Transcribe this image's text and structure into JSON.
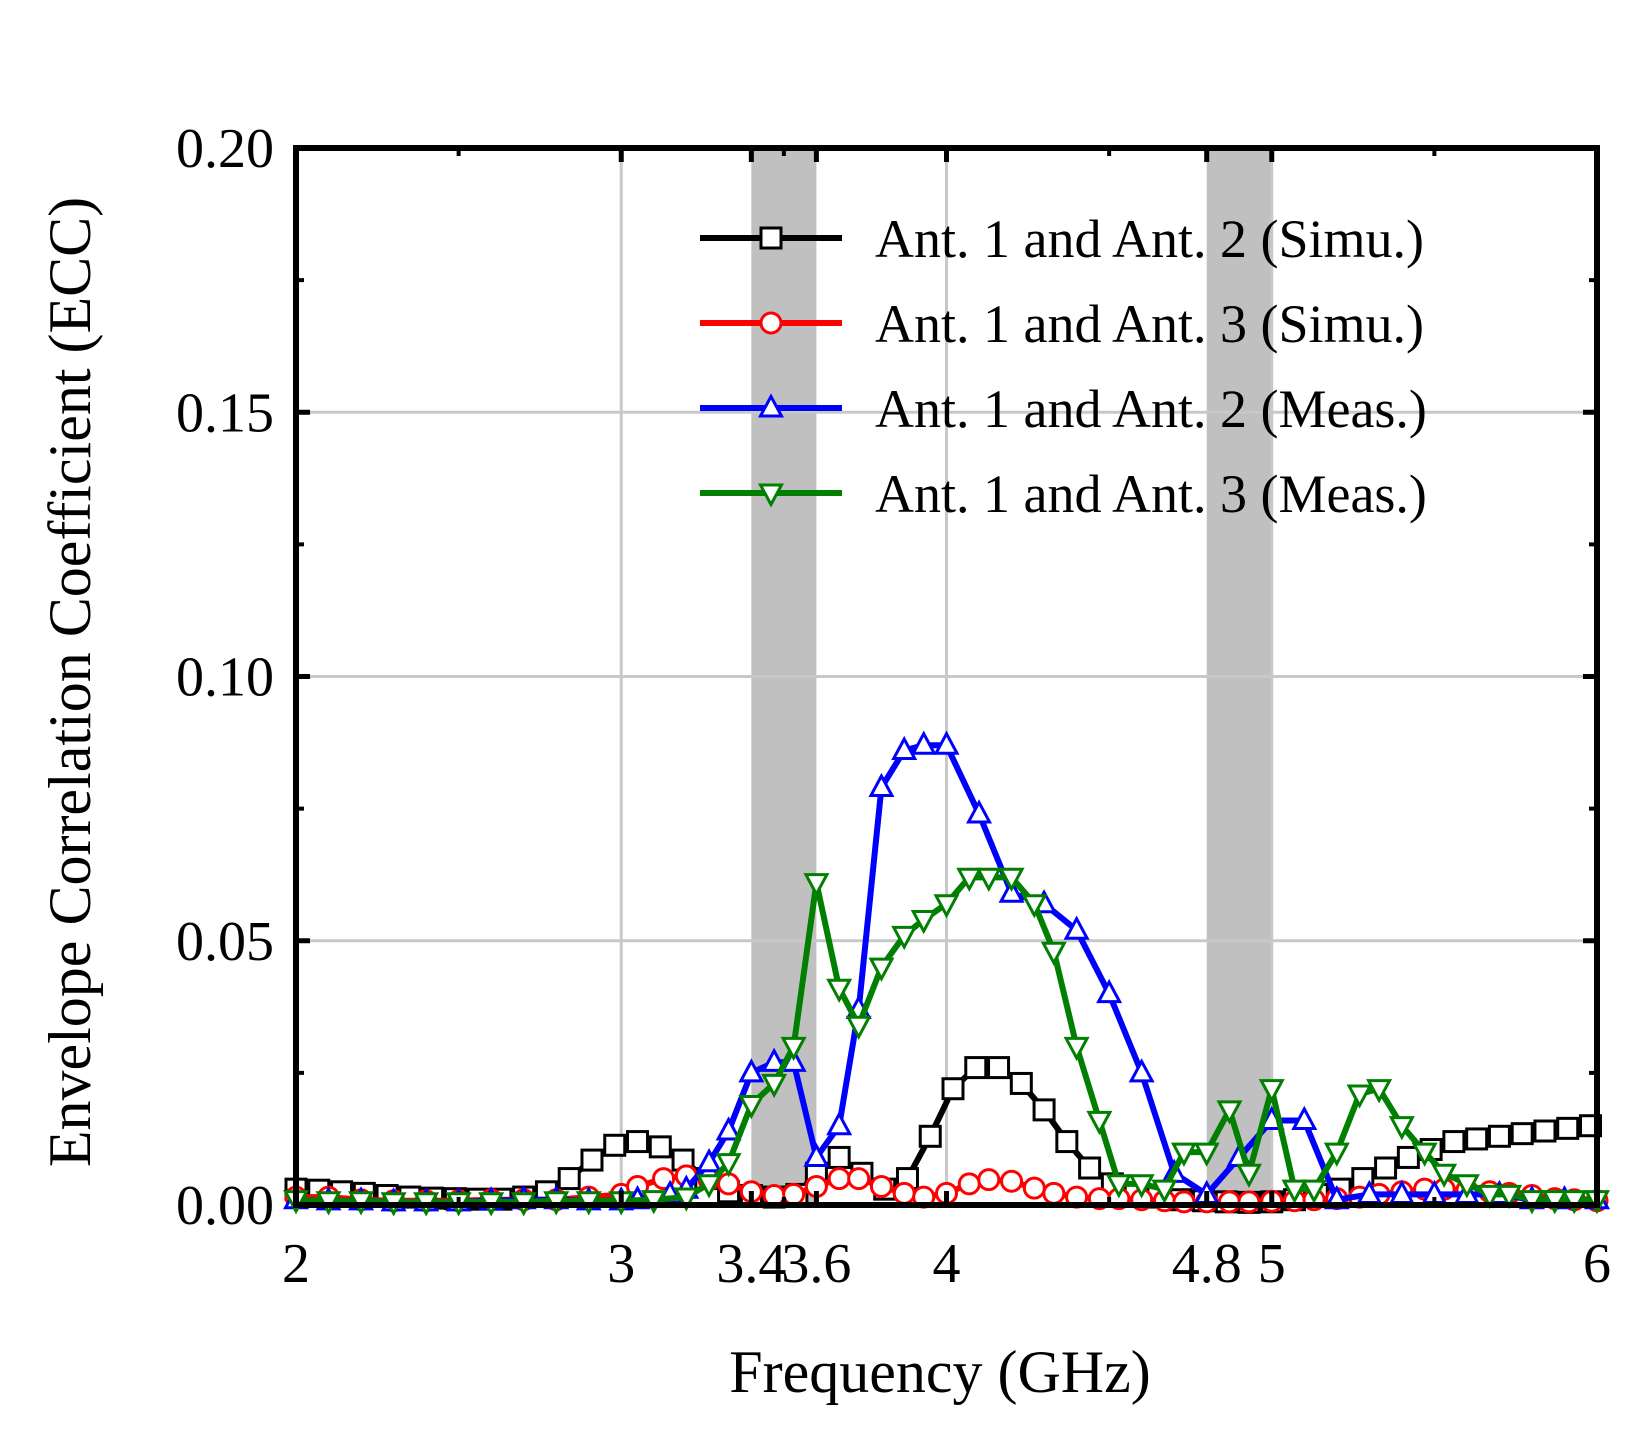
{
  "chart_data": {
    "type": "line",
    "title": "",
    "xlabel": "Frequency (GHz)",
    "ylabel": "Envelope Correlation Coefficient (ECC)",
    "xlim": [
      2,
      6
    ],
    "ylim": [
      0,
      0.2
    ],
    "xticks": [
      2,
      3,
      3.4,
      3.6,
      4,
      4.8,
      5,
      6
    ],
    "xtick_labels": [
      "2",
      "3",
      "3.4",
      "3.6",
      "4",
      "4.8",
      "5",
      "6"
    ],
    "yticks": [
      0,
      0.05,
      0.1,
      0.15,
      0.2
    ],
    "ytick_labels": [
      "0.00",
      "0.05",
      "0.10",
      "0.15",
      "0.20"
    ],
    "xgrid": [
      3,
      4,
      5
    ],
    "shaded_bands": [
      [
        3.4,
        3.6
      ],
      [
        4.8,
        5.0
      ]
    ],
    "grid": true,
    "legend_position": "top-right",
    "series": [
      {
        "name": "Ant. 1 and Ant. 2 (Simu.)",
        "color": "#000000",
        "marker": "square",
        "points": [
          [
            2,
            0.003
          ],
          [
            2.07,
            0.0028
          ],
          [
            2.14,
            0.0025
          ],
          [
            2.21,
            0.0022
          ],
          [
            2.28,
            0.0018
          ],
          [
            2.35,
            0.0015
          ],
          [
            2.42,
            0.0013
          ],
          [
            2.49,
            0.0012
          ],
          [
            2.56,
            0.0011
          ],
          [
            2.63,
            0.0011
          ],
          [
            2.7,
            0.0015
          ],
          [
            2.77,
            0.0025
          ],
          [
            2.84,
            0.005
          ],
          [
            2.91,
            0.0085
          ],
          [
            2.98,
            0.0113
          ],
          [
            3.05,
            0.012
          ],
          [
            3.12,
            0.011
          ],
          [
            3.19,
            0.0085
          ],
          [
            3.26,
            0.005
          ],
          [
            3.33,
            0.0025
          ],
          [
            3.4,
            0.0018
          ],
          [
            3.47,
            0.0015
          ],
          [
            3.54,
            0.002
          ],
          [
            3.6,
            0.006
          ],
          [
            3.67,
            0.009
          ],
          [
            3.74,
            0.006
          ],
          [
            3.81,
            0.003
          ],
          [
            3.88,
            0.005
          ],
          [
            3.95,
            0.013
          ],
          [
            4.02,
            0.022
          ],
          [
            4.09,
            0.026
          ],
          [
            4.16,
            0.026
          ],
          [
            4.23,
            0.023
          ],
          [
            4.3,
            0.018
          ],
          [
            4.37,
            0.012
          ],
          [
            4.44,
            0.007
          ],
          [
            4.51,
            0.004
          ],
          [
            4.58,
            0.002
          ],
          [
            4.65,
            0.0015
          ],
          [
            4.72,
            0.001
          ],
          [
            4.79,
            0.0008
          ],
          [
            4.86,
            0.0006
          ],
          [
            4.93,
            0.0005
          ],
          [
            5.0,
            0.0006
          ],
          [
            5.07,
            0.001
          ],
          [
            5.14,
            0.002
          ],
          [
            5.21,
            0.003
          ],
          [
            5.28,
            0.005
          ],
          [
            5.35,
            0.007
          ],
          [
            5.42,
            0.009
          ],
          [
            5.49,
            0.0105
          ],
          [
            5.56,
            0.012
          ],
          [
            5.63,
            0.0125
          ],
          [
            5.7,
            0.013
          ],
          [
            5.77,
            0.0135
          ],
          [
            5.84,
            0.014
          ],
          [
            5.91,
            0.0145
          ],
          [
            5.98,
            0.015
          ]
        ]
      },
      {
        "name": "Ant. 1 and Ant. 3 (Simu.)",
        "color": "#ff0000",
        "marker": "circle",
        "points": [
          [
            2,
            0.0015
          ],
          [
            2.1,
            0.0015
          ],
          [
            2.2,
            0.001
          ],
          [
            2.3,
            0.0008
          ],
          [
            2.4,
            0.0008
          ],
          [
            2.5,
            0.0008
          ],
          [
            2.6,
            0.001
          ],
          [
            2.7,
            0.001
          ],
          [
            2.8,
            0.001
          ],
          [
            2.9,
            0.0015
          ],
          [
            3.0,
            0.002
          ],
          [
            3.05,
            0.0035
          ],
          [
            3.13,
            0.005
          ],
          [
            3.2,
            0.0055
          ],
          [
            3.27,
            0.0048
          ],
          [
            3.33,
            0.004
          ],
          [
            3.4,
            0.0025
          ],
          [
            3.47,
            0.0018
          ],
          [
            3.53,
            0.002
          ],
          [
            3.6,
            0.0035
          ],
          [
            3.67,
            0.005
          ],
          [
            3.73,
            0.005
          ],
          [
            3.8,
            0.0035
          ],
          [
            3.87,
            0.0022
          ],
          [
            3.93,
            0.0015
          ],
          [
            4.0,
            0.0022
          ],
          [
            4.07,
            0.004
          ],
          [
            4.13,
            0.0048
          ],
          [
            4.2,
            0.0045
          ],
          [
            4.27,
            0.0032
          ],
          [
            4.33,
            0.0022
          ],
          [
            4.4,
            0.0015
          ],
          [
            4.47,
            0.0012
          ],
          [
            4.53,
            0.0012
          ],
          [
            4.6,
            0.001
          ],
          [
            4.67,
            0.0008
          ],
          [
            4.73,
            0.0006
          ],
          [
            4.8,
            0.0006
          ],
          [
            4.87,
            0.0006
          ],
          [
            4.93,
            0.0006
          ],
          [
            5.0,
            0.0007
          ],
          [
            5.07,
            0.0008
          ],
          [
            5.13,
            0.001
          ],
          [
            5.2,
            0.0012
          ],
          [
            5.27,
            0.0015
          ],
          [
            5.33,
            0.002
          ],
          [
            5.4,
            0.0025
          ],
          [
            5.47,
            0.003
          ],
          [
            5.53,
            0.003
          ],
          [
            5.6,
            0.0028
          ],
          [
            5.67,
            0.0025
          ],
          [
            5.73,
            0.0022
          ],
          [
            5.8,
            0.0018
          ],
          [
            5.87,
            0.0012
          ],
          [
            5.93,
            0.001
          ],
          [
            6.0,
            0.0008
          ]
        ]
      },
      {
        "name": "Ant. 1 and Ant. 2 (Meas.)",
        "color": "#0000ff",
        "marker": "triangle-up",
        "points": [
          [
            2,
            0.001
          ],
          [
            2.1,
            0.0008
          ],
          [
            2.2,
            0.0008
          ],
          [
            2.3,
            0.0006
          ],
          [
            2.4,
            0.0006
          ],
          [
            2.5,
            0.0006
          ],
          [
            2.6,
            0.0008
          ],
          [
            2.7,
            0.001
          ],
          [
            2.8,
            0.001
          ],
          [
            2.9,
            0.0008
          ],
          [
            3.0,
            0.0008
          ],
          [
            3.05,
            0.001
          ],
          [
            3.15,
            0.002
          ],
          [
            3.2,
            0.003
          ],
          [
            3.27,
            0.008
          ],
          [
            3.33,
            0.014
          ],
          [
            3.4,
            0.025
          ],
          [
            3.47,
            0.027
          ],
          [
            3.53,
            0.027
          ],
          [
            3.6,
            0.009
          ],
          [
            3.67,
            0.015
          ],
          [
            3.73,
            0.037
          ],
          [
            3.8,
            0.079
          ],
          [
            3.87,
            0.086
          ],
          [
            3.93,
            0.087
          ],
          [
            4.0,
            0.087
          ],
          [
            4.1,
            0.074
          ],
          [
            4.2,
            0.059
          ],
          [
            4.3,
            0.057
          ],
          [
            4.4,
            0.052
          ],
          [
            4.5,
            0.04
          ],
          [
            4.6,
            0.025
          ],
          [
            4.7,
            0.006
          ],
          [
            4.8,
            0.002
          ],
          [
            4.9,
            0.009
          ],
          [
            5.0,
            0.016
          ],
          [
            5.1,
            0.016
          ],
          [
            5.2,
            0.001
          ],
          [
            5.3,
            0.002
          ],
          [
            5.4,
            0.002
          ],
          [
            5.5,
            0.002
          ],
          [
            5.6,
            0.002
          ],
          [
            5.7,
            0.002
          ],
          [
            5.8,
            0.001
          ],
          [
            5.9,
            0.001
          ],
          [
            6.0,
            0.001
          ]
        ]
      },
      {
        "name": "Ant. 1 and Ant. 3 (Meas.)",
        "color": "#007f00",
        "marker": "triangle-down",
        "points": [
          [
            2,
            0.001
          ],
          [
            2.1,
            0.0008
          ],
          [
            2.2,
            0.0008
          ],
          [
            2.3,
            0.0006
          ],
          [
            2.4,
            0.0006
          ],
          [
            2.5,
            0.0006
          ],
          [
            2.6,
            0.0006
          ],
          [
            2.7,
            0.0006
          ],
          [
            2.8,
            0.0008
          ],
          [
            2.9,
            0.0008
          ],
          [
            3.0,
            0.0008
          ],
          [
            3.1,
            0.001
          ],
          [
            3.2,
            0.0015
          ],
          [
            3.27,
            0.004
          ],
          [
            3.33,
            0.008
          ],
          [
            3.4,
            0.019
          ],
          [
            3.47,
            0.023
          ],
          [
            3.53,
            0.03
          ],
          [
            3.6,
            0.061
          ],
          [
            3.67,
            0.041
          ],
          [
            3.73,
            0.034
          ],
          [
            3.8,
            0.045
          ],
          [
            3.87,
            0.051
          ],
          [
            3.93,
            0.054
          ],
          [
            4.0,
            0.057
          ],
          [
            4.07,
            0.062
          ],
          [
            4.13,
            0.062
          ],
          [
            4.2,
            0.062
          ],
          [
            4.27,
            0.057
          ],
          [
            4.33,
            0.048
          ],
          [
            4.4,
            0.03
          ],
          [
            4.47,
            0.016
          ],
          [
            4.53,
            0.004
          ],
          [
            4.6,
            0.004
          ],
          [
            4.67,
            0.003
          ],
          [
            4.73,
            0.01
          ],
          [
            4.8,
            0.01
          ],
          [
            4.87,
            0.018
          ],
          [
            4.93,
            0.006
          ],
          [
            5.0,
            0.022
          ],
          [
            5.07,
            0.003
          ],
          [
            5.13,
            0.003
          ],
          [
            5.2,
            0.01
          ],
          [
            5.27,
            0.021
          ],
          [
            5.33,
            0.022
          ],
          [
            5.4,
            0.015
          ],
          [
            5.47,
            0.01
          ],
          [
            5.53,
            0.006
          ],
          [
            5.6,
            0.004
          ],
          [
            5.67,
            0.002
          ],
          [
            5.73,
            0.002
          ],
          [
            5.8,
            0.001
          ],
          [
            5.87,
            0.001
          ],
          [
            5.93,
            0.001
          ],
          [
            6.0,
            0.001
          ]
        ]
      }
    ]
  }
}
